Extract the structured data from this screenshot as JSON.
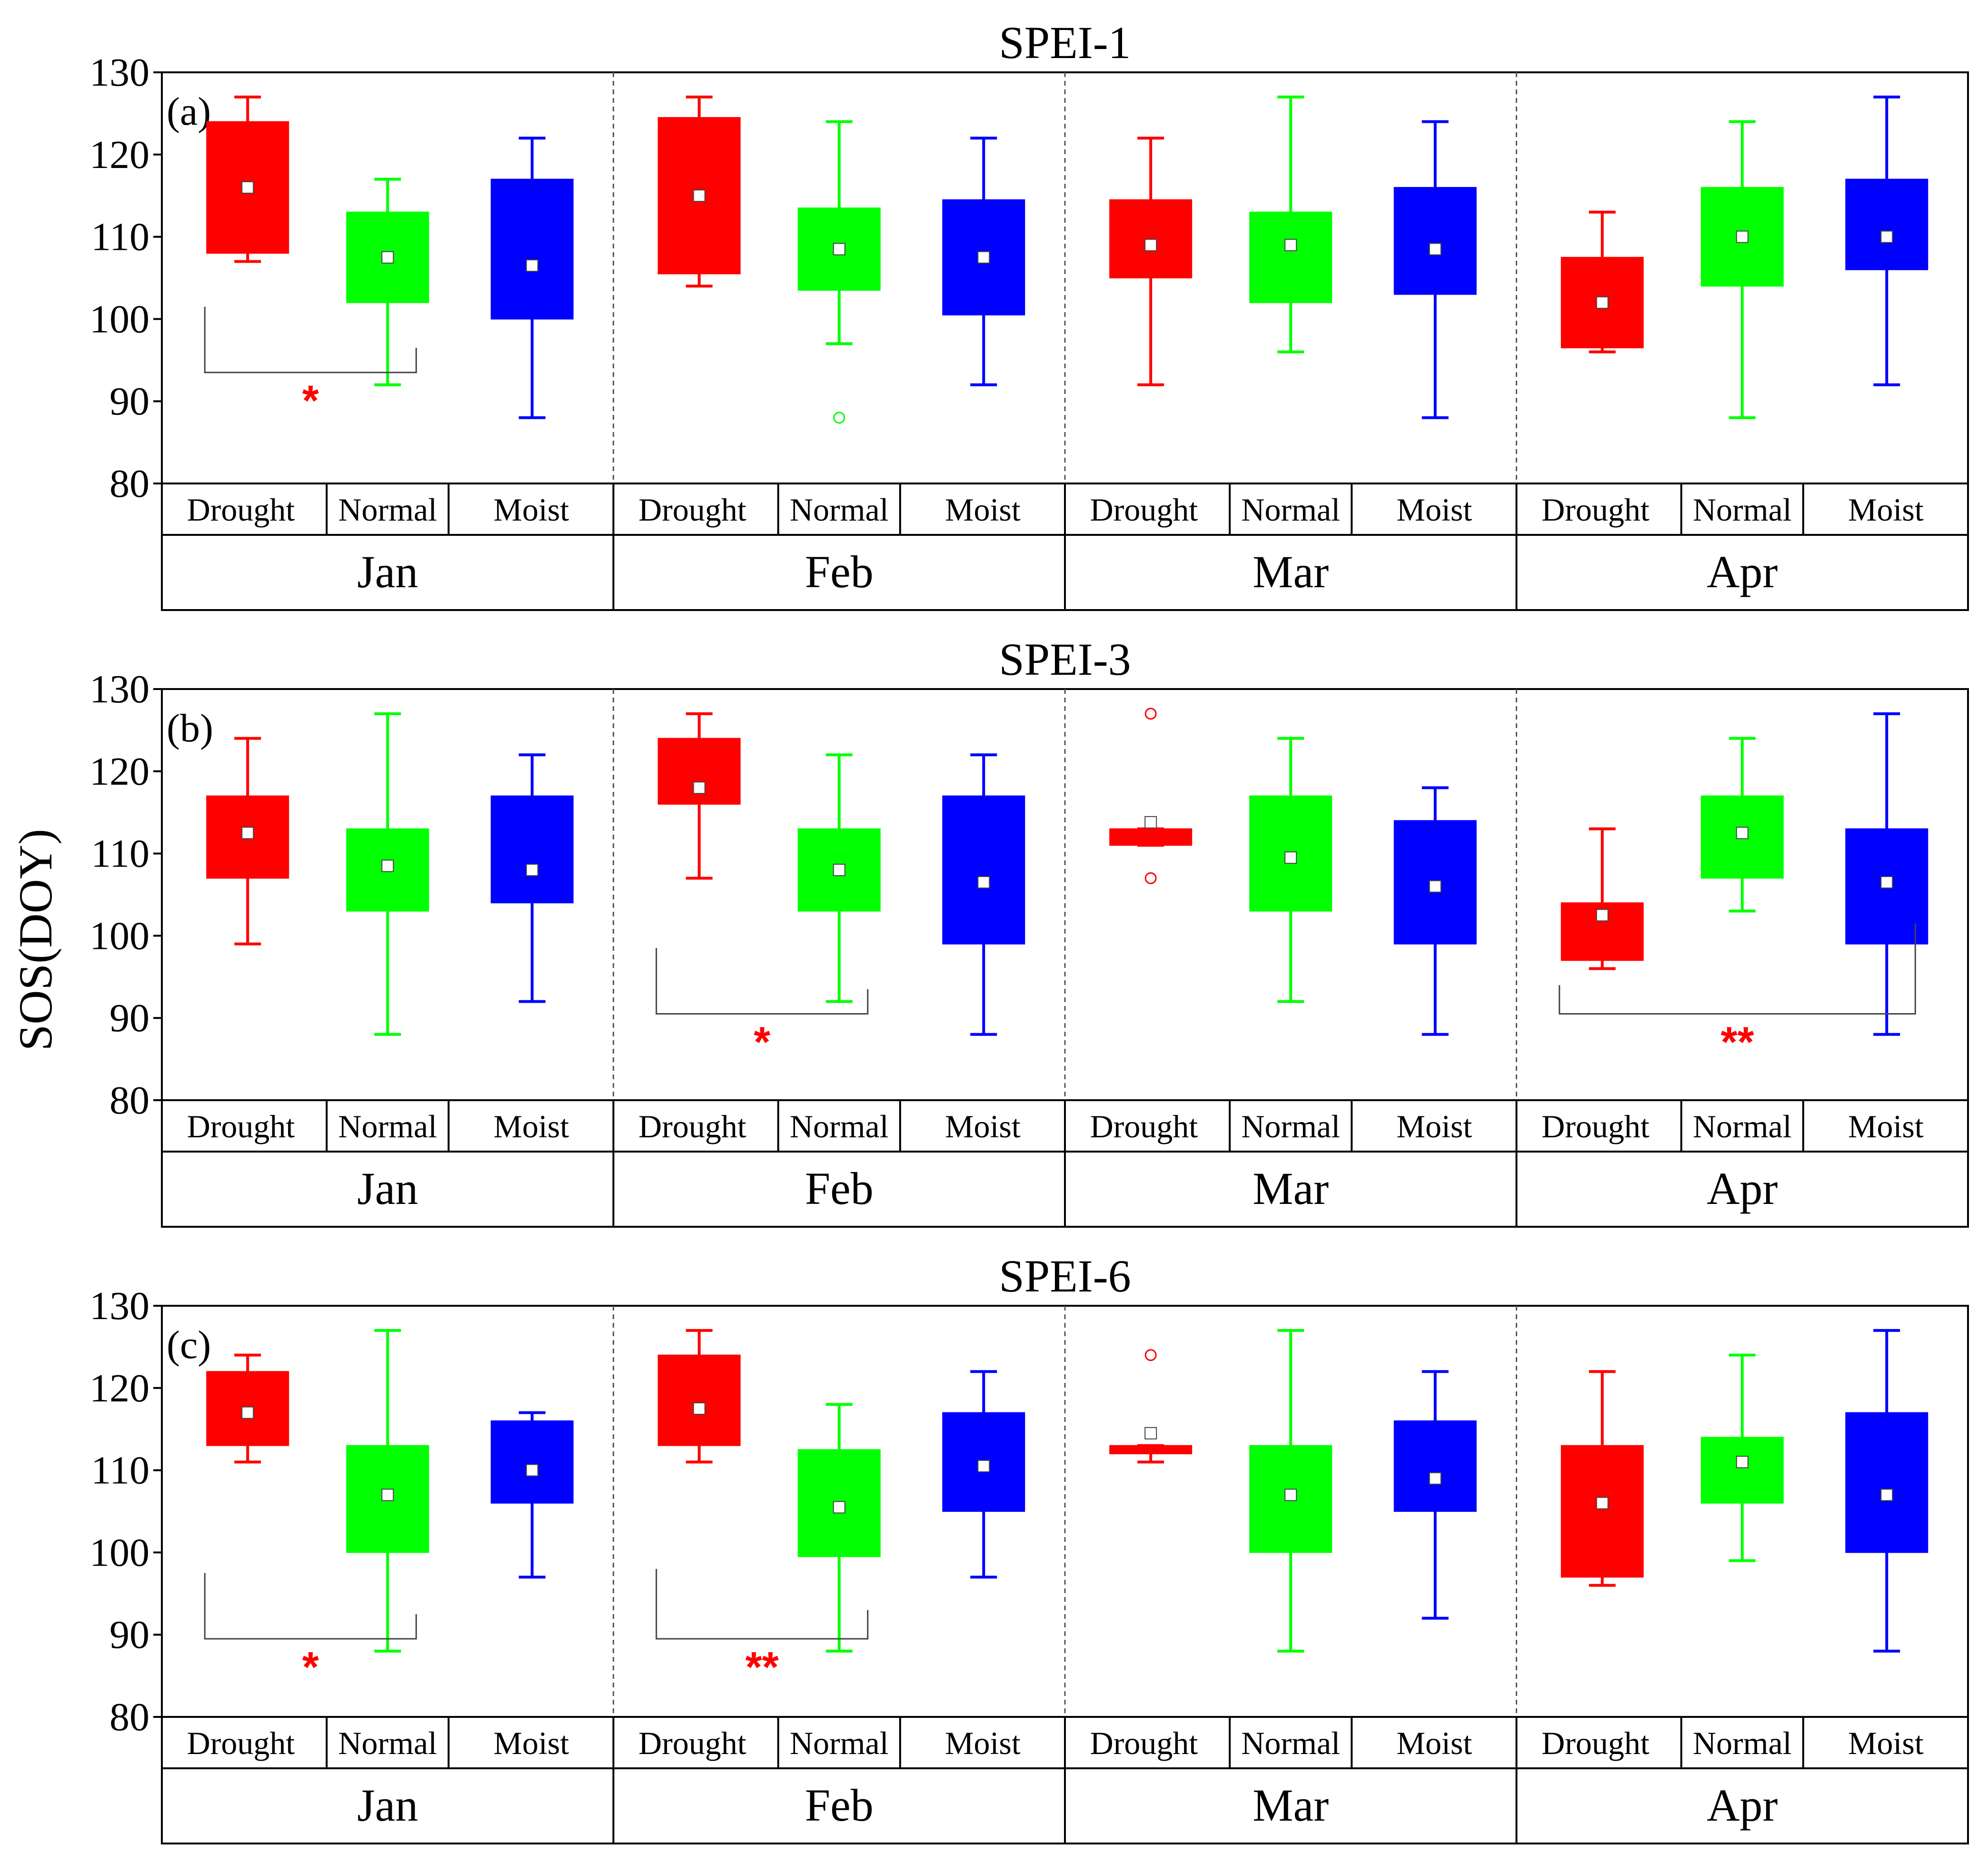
{
  "chart_data": {
    "type": "box",
    "ylabel": "SOS(DOY)",
    "ylim": [
      80,
      130
    ],
    "yticks": [
      80,
      90,
      100,
      110,
      120,
      130
    ],
    "months": [
      "Jan",
      "Feb",
      "Mar",
      "Apr"
    ],
    "groups": [
      "Drought",
      "Normal",
      "Moist"
    ],
    "colors": {
      "Drought": "#ff0000",
      "Normal": "#00ff00",
      "Moist": "#0000ff"
    },
    "panels": [
      {
        "title": "SPEI-1",
        "label": "(a)",
        "boxes": [
          [
            {
              "min": 107,
              "q1": 108,
              "median": 116,
              "q3": 124,
              "max": 127,
              "mean": 116
            },
            {
              "min": 92,
              "q1": 102,
              "median": 107.5,
              "q3": 113,
              "max": 117,
              "mean": 107.5
            },
            {
              "min": 88,
              "q1": 100,
              "median": 106.5,
              "q3": 117,
              "max": 122,
              "mean": 106.5
            }
          ],
          [
            {
              "min": 104,
              "q1": 105.5,
              "median": 115,
              "q3": 124.5,
              "max": 127,
              "mean": 115
            },
            {
              "min": 97,
              "q1": 103.5,
              "median": 108.5,
              "q3": 113.5,
              "max": 124,
              "mean": 108.5,
              "outliers": [
                88
              ]
            },
            {
              "min": 92,
              "q1": 100.5,
              "median": 107.5,
              "q3": 114.5,
              "max": 122,
              "mean": 107.5
            }
          ],
          [
            {
              "min": 92,
              "q1": 105,
              "median": 109,
              "q3": 114.5,
              "max": 122,
              "mean": 109
            },
            {
              "min": 96,
              "q1": 102,
              "median": 109,
              "q3": 113,
              "max": 127,
              "mean": 109
            },
            {
              "min": 88,
              "q1": 103,
              "median": 108.5,
              "q3": 116,
              "max": 124,
              "mean": 108.5
            }
          ],
          [
            {
              "min": 96,
              "q1": 96.5,
              "median": 102,
              "q3": 107.5,
              "max": 113,
              "mean": 102
            },
            {
              "min": 88,
              "q1": 104,
              "median": 110,
              "q3": 116,
              "max": 124,
              "mean": 110
            },
            {
              "min": 92,
              "q1": 106,
              "median": 110,
              "q3": 117,
              "max": 127,
              "mean": 110
            }
          ]
        ],
        "sig": [
          {
            "month": 0,
            "from": 0,
            "to": 1,
            "yTop_left": 101.5,
            "yTop_right": 96.5,
            "yBottom": 93.5,
            "label": "*"
          }
        ]
      },
      {
        "title": "SPEI-3",
        "label": "(b)",
        "boxes": [
          [
            {
              "min": 99,
              "q1": 107,
              "median": 112.5,
              "q3": 117,
              "max": 124,
              "mean": 112.5
            },
            {
              "min": 88,
              "q1": 103,
              "median": 108.5,
              "q3": 113,
              "max": 127,
              "mean": 108.5
            },
            {
              "min": 92,
              "q1": 104,
              "median": 108,
              "q3": 117,
              "max": 122,
              "mean": 108
            }
          ],
          [
            {
              "min": 107,
              "q1": 116,
              "median": 118,
              "q3": 124,
              "max": 127,
              "mean": 118
            },
            {
              "min": 92,
              "q1": 103,
              "median": 108,
              "q3": 113,
              "max": 122,
              "mean": 108
            },
            {
              "min": 88,
              "q1": 99,
              "median": 106.5,
              "q3": 117,
              "max": 122,
              "mean": 106.5
            }
          ],
          [
            {
              "min": 111,
              "q1": 111,
              "median": 112,
              "q3": 113,
              "max": 113,
              "mean": 113.8,
              "outliers": [
                127,
                107
              ]
            },
            {
              "min": 92,
              "q1": 103,
              "median": 109.5,
              "q3": 117,
              "max": 124,
              "mean": 109.5
            },
            {
              "min": 88,
              "q1": 99,
              "median": 106,
              "q3": 114,
              "max": 118,
              "mean": 106
            }
          ],
          [
            {
              "min": 96,
              "q1": 97,
              "median": 102.5,
              "q3": 104,
              "max": 113,
              "mean": 102.5
            },
            {
              "min": 103,
              "q1": 107,
              "median": 112.5,
              "q3": 117,
              "max": 124,
              "mean": 112.5
            },
            {
              "min": 88,
              "q1": 99,
              "median": 106.5,
              "q3": 113,
              "max": 127,
              "mean": 106.5
            }
          ]
        ],
        "sig": [
          {
            "month": 1,
            "from": 0,
            "to": 1,
            "yTop_left": 98.5,
            "yTop_right": 93.5,
            "yBottom": 90.5,
            "label": "*"
          },
          {
            "month": 3,
            "from": 0,
            "to": 2,
            "yTop_left": 94,
            "yTop_right": 101.5,
            "yBottom": 90.5,
            "label": "**"
          }
        ]
      },
      {
        "title": "SPEI-6",
        "label": "(c)",
        "boxes": [
          [
            {
              "min": 111,
              "q1": 113,
              "median": 117,
              "q3": 122,
              "max": 124,
              "mean": 117
            },
            {
              "min": 88,
              "q1": 100,
              "median": 107,
              "q3": 113,
              "max": 127,
              "mean": 107
            },
            {
              "min": 97,
              "q1": 106,
              "median": 110,
              "q3": 116,
              "max": 117,
              "mean": 110
            }
          ],
          [
            {
              "min": 111,
              "q1": 113,
              "median": 117.5,
              "q3": 124,
              "max": 127,
              "mean": 117.5
            },
            {
              "min": 88,
              "q1": 99.5,
              "median": 105.5,
              "q3": 112.5,
              "max": 118,
              "mean": 105.5
            },
            {
              "min": 97,
              "q1": 105,
              "median": 110.5,
              "q3": 117,
              "max": 122,
              "mean": 110.5
            }
          ],
          [
            {
              "min": 111,
              "q1": 112,
              "median": 112.5,
              "q3": 113,
              "max": 113,
              "mean": 114.5,
              "outliers": [
                124
              ]
            },
            {
              "min": 88,
              "q1": 100,
              "median": 107,
              "q3": 113,
              "max": 127,
              "mean": 107
            },
            {
              "min": 92,
              "q1": 105,
              "median": 109,
              "q3": 116,
              "max": 122,
              "mean": 109
            }
          ],
          [
            {
              "min": 96,
              "q1": 97,
              "median": 106,
              "q3": 113,
              "max": 122,
              "mean": 106
            },
            {
              "min": 99,
              "q1": 106,
              "median": 111,
              "q3": 114,
              "max": 124,
              "mean": 111
            },
            {
              "min": 88,
              "q1": 100,
              "median": 107,
              "q3": 117,
              "max": 127,
              "mean": 107
            }
          ]
        ],
        "sig": [
          {
            "month": 0,
            "from": 0,
            "to": 1,
            "yTop_left": 97.5,
            "yTop_right": 92.5,
            "yBottom": 89.5,
            "label": "*"
          },
          {
            "month": 1,
            "from": 0,
            "to": 1,
            "yTop_left": 98,
            "yTop_right": 93,
            "yBottom": 89.5,
            "label": "**"
          }
        ]
      }
    ]
  }
}
